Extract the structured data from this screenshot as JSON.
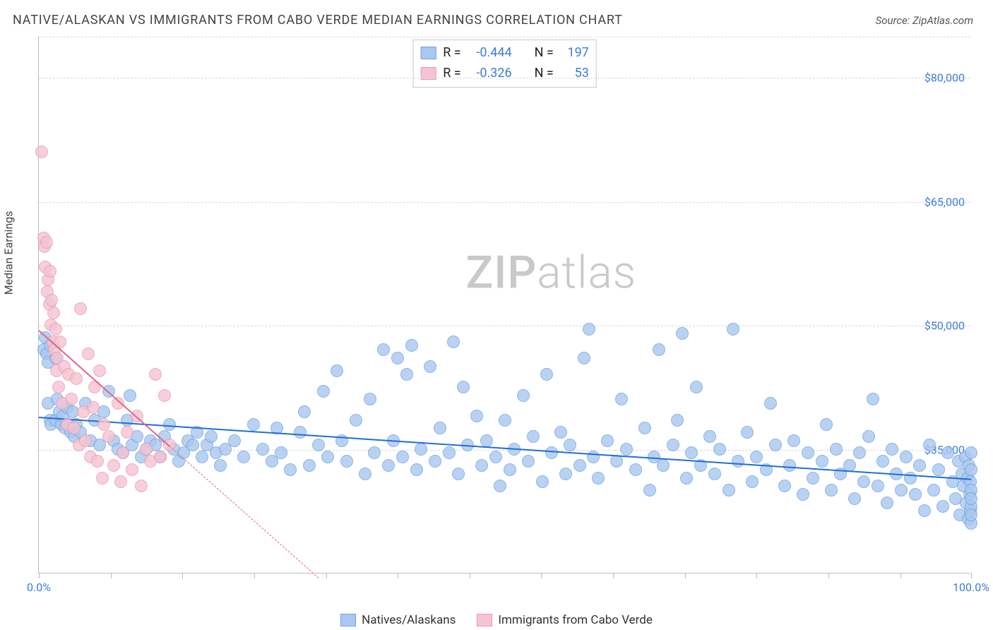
{
  "title": "NATIVE/ALASKAN VS IMMIGRANTS FROM CABO VERDE MEDIAN EARNINGS CORRELATION CHART",
  "source_label": "Source: ZipAtlas.com",
  "watermark": {
    "part1": "ZIP",
    "part2": "atlas"
  },
  "chart": {
    "type": "scatter",
    "y_axis_label": "Median Earnings",
    "xlim": [
      0,
      100
    ],
    "ylim": [
      20000,
      85000
    ],
    "background_color": "#ffffff",
    "grid_color": "#d8d8d8",
    "axis_color": "#bbbbbb",
    "x_ticks": [
      0,
      7.7,
      15.4,
      23.1,
      30.8,
      38.5,
      46.2,
      53.9,
      61.6,
      69.3,
      77.0,
      84.7,
      92.4,
      100
    ],
    "x_tick_labels": {
      "0": "0.0%",
      "100": "100.0%"
    },
    "y_ticks": [
      35000,
      50000,
      65000,
      80000
    ],
    "y_tick_labels": {
      "35000": "$35,000",
      "50000": "$50,000",
      "65000": "$65,000",
      "80000": "$80,000"
    },
    "tick_label_color": "#3b7dd8",
    "marker_radius": 9,
    "marker_border_width": 1.5,
    "marker_fill_opacity": 0.35,
    "series": [
      {
        "name": "Natives/Alaskans",
        "color_border": "#6fa3e0",
        "color_fill": "#a9c8ef",
        "trend_color": "#1f6fd4",
        "trend_line": {
          "x1": 0,
          "y1": 39000,
          "x2": 100,
          "y2": 31500
        },
        "stats": {
          "R": "-0.444",
          "N": "197"
        },
        "points": [
          [
            0.5,
            47000
          ],
          [
            0.7,
            48500
          ],
          [
            0.8,
            46500
          ],
          [
            1.0,
            45500
          ],
          [
            1.2,
            47500
          ],
          [
            1.0,
            40500
          ],
          [
            1.2,
            38500
          ],
          [
            1.3,
            38000
          ],
          [
            1.8,
            46000
          ],
          [
            1.8,
            38500
          ],
          [
            2.0,
            41000
          ],
          [
            2.2,
            39500
          ],
          [
            2.4,
            38000
          ],
          [
            2.6,
            39000
          ],
          [
            2.8,
            37500
          ],
          [
            3.0,
            40000
          ],
          [
            3.2,
            38000
          ],
          [
            3.4,
            37000
          ],
          [
            3.6,
            39500
          ],
          [
            3.8,
            36500
          ],
          [
            4.0,
            38000
          ],
          [
            4.5,
            37000
          ],
          [
            5.0,
            40500
          ],
          [
            5.5,
            36000
          ],
          [
            6.0,
            38500
          ],
          [
            6.5,
            35500
          ],
          [
            7.0,
            39500
          ],
          [
            7.5,
            42000
          ],
          [
            8.0,
            36000
          ],
          [
            8.5,
            35000
          ],
          [
            9.0,
            34500
          ],
          [
            9.5,
            38500
          ],
          [
            9.8,
            41500
          ],
          [
            10.0,
            35500
          ],
          [
            10.5,
            36500
          ],
          [
            11.0,
            34000
          ],
          [
            11.5,
            35000
          ],
          [
            12.0,
            36000
          ],
          [
            12.5,
            35500
          ],
          [
            13.0,
            34000
          ],
          [
            13.5,
            36500
          ],
          [
            14.0,
            38000
          ],
          [
            14.5,
            35000
          ],
          [
            15.0,
            33500
          ],
          [
            15.5,
            34500
          ],
          [
            16.0,
            36000
          ],
          [
            16.5,
            35500
          ],
          [
            17.0,
            37000
          ],
          [
            17.5,
            34000
          ],
          [
            18.0,
            35500
          ],
          [
            18.5,
            36500
          ],
          [
            19.0,
            34500
          ],
          [
            19.5,
            33000
          ],
          [
            20.0,
            35000
          ],
          [
            21.0,
            36000
          ],
          [
            22.0,
            34000
          ],
          [
            23.0,
            38000
          ],
          [
            24.0,
            35000
          ],
          [
            25.0,
            33500
          ],
          [
            25.5,
            37500
          ],
          [
            26.0,
            34500
          ],
          [
            27.0,
            32500
          ],
          [
            28.0,
            37000
          ],
          [
            28.5,
            39500
          ],
          [
            29.0,
            33000
          ],
          [
            30.0,
            35500
          ],
          [
            30.5,
            42000
          ],
          [
            31.0,
            34000
          ],
          [
            32.0,
            44500
          ],
          [
            32.5,
            36000
          ],
          [
            33.0,
            33500
          ],
          [
            34.0,
            38500
          ],
          [
            35.0,
            32000
          ],
          [
            35.5,
            41000
          ],
          [
            36.0,
            34500
          ],
          [
            37.0,
            47000
          ],
          [
            37.5,
            33000
          ],
          [
            38.0,
            36000
          ],
          [
            38.5,
            46000
          ],
          [
            39.0,
            34000
          ],
          [
            39.5,
            44000
          ],
          [
            40.0,
            47500
          ],
          [
            40.5,
            32500
          ],
          [
            41.0,
            35000
          ],
          [
            42.0,
            45000
          ],
          [
            42.5,
            33500
          ],
          [
            43.0,
            37500
          ],
          [
            44.0,
            34500
          ],
          [
            44.5,
            48000
          ],
          [
            45.0,
            32000
          ],
          [
            45.5,
            42500
          ],
          [
            46.0,
            35500
          ],
          [
            47.0,
            39000
          ],
          [
            47.5,
            33000
          ],
          [
            48.0,
            36000
          ],
          [
            49.0,
            34000
          ],
          [
            49.5,
            30500
          ],
          [
            50.0,
            38500
          ],
          [
            50.5,
            32500
          ],
          [
            51.0,
            35000
          ],
          [
            52.0,
            41500
          ],
          [
            52.5,
            33500
          ],
          [
            53.0,
            36500
          ],
          [
            54.0,
            31000
          ],
          [
            54.5,
            44000
          ],
          [
            55.0,
            34500
          ],
          [
            56.0,
            37000
          ],
          [
            56.5,
            32000
          ],
          [
            57.0,
            35500
          ],
          [
            58.0,
            33000
          ],
          [
            58.5,
            46000
          ],
          [
            59.0,
            49500
          ],
          [
            59.5,
            34000
          ],
          [
            60.0,
            31500
          ],
          [
            61.0,
            36000
          ],
          [
            62.0,
            33500
          ],
          [
            62.5,
            41000
          ],
          [
            63.0,
            35000
          ],
          [
            64.0,
            32500
          ],
          [
            65.0,
            37500
          ],
          [
            65.5,
            30000
          ],
          [
            66.0,
            34000
          ],
          [
            66.5,
            47000
          ],
          [
            67.0,
            33000
          ],
          [
            68.0,
            35500
          ],
          [
            68.5,
            38500
          ],
          [
            69.0,
            49000
          ],
          [
            69.5,
            31500
          ],
          [
            70.0,
            34500
          ],
          [
            70.5,
            42500
          ],
          [
            71.0,
            33000
          ],
          [
            72.0,
            36500
          ],
          [
            72.5,
            32000
          ],
          [
            73.0,
            35000
          ],
          [
            74.0,
            30000
          ],
          [
            74.5,
            49500
          ],
          [
            75.0,
            33500
          ],
          [
            76.0,
            37000
          ],
          [
            76.5,
            31000
          ],
          [
            77.0,
            34000
          ],
          [
            78.0,
            32500
          ],
          [
            78.5,
            40500
          ],
          [
            79.0,
            35500
          ],
          [
            80.0,
            30500
          ],
          [
            80.5,
            33000
          ],
          [
            81.0,
            36000
          ],
          [
            82.0,
            29500
          ],
          [
            82.5,
            34500
          ],
          [
            83.0,
            31500
          ],
          [
            84.0,
            33500
          ],
          [
            84.5,
            38000
          ],
          [
            85.0,
            30000
          ],
          [
            85.5,
            35000
          ],
          [
            86.0,
            32000
          ],
          [
            87.0,
            33000
          ],
          [
            87.5,
            29000
          ],
          [
            88.0,
            34500
          ],
          [
            88.5,
            31000
          ],
          [
            89.0,
            36500
          ],
          [
            89.5,
            41000
          ],
          [
            90.0,
            30500
          ],
          [
            90.5,
            33500
          ],
          [
            91.0,
            28500
          ],
          [
            91.5,
            35000
          ],
          [
            92.0,
            32000
          ],
          [
            92.5,
            30000
          ],
          [
            93.0,
            34000
          ],
          [
            93.5,
            31500
          ],
          [
            94.0,
            29500
          ],
          [
            94.5,
            33000
          ],
          [
            95.0,
            27500
          ],
          [
            95.5,
            35500
          ],
          [
            96.0,
            30000
          ],
          [
            96.5,
            32500
          ],
          [
            97.0,
            28000
          ],
          [
            97.5,
            34500
          ],
          [
            98.0,
            31000
          ],
          [
            98.3,
            29000
          ],
          [
            98.6,
            33500
          ],
          [
            98.8,
            27000
          ],
          [
            99.0,
            32000
          ],
          [
            99.2,
            30500
          ],
          [
            99.4,
            34000
          ],
          [
            99.5,
            28500
          ],
          [
            99.6,
            31500
          ],
          [
            99.7,
            26500
          ],
          [
            99.8,
            33000
          ],
          [
            99.85,
            29500
          ],
          [
            99.9,
            27500
          ],
          [
            99.95,
            31000
          ],
          [
            100.0,
            28000
          ],
          [
            100.0,
            30000
          ],
          [
            100.0,
            32500
          ],
          [
            100.0,
            26000
          ],
          [
            100.0,
            29000
          ],
          [
            100.0,
            34500
          ],
          [
            100.0,
            27000
          ]
        ]
      },
      {
        "name": "Immigrants from Cabo Verde",
        "color_border": "#e89ab0",
        "color_fill": "#f4c4d2",
        "trend_color": "#e06688",
        "trend_line": {
          "x1": 0,
          "y1": 49500,
          "x2": 14,
          "y2": 35500
        },
        "trend_dash": {
          "x1": 14,
          "y1": 35500,
          "x2": 30,
          "y2": 19500
        },
        "stats": {
          "R": "-0.326",
          "N": "53"
        },
        "points": [
          [
            0.3,
            71000
          ],
          [
            0.5,
            60500
          ],
          [
            0.6,
            59500
          ],
          [
            0.7,
            57000
          ],
          [
            0.8,
            60000
          ],
          [
            0.9,
            54000
          ],
          [
            1.0,
            55500
          ],
          [
            1.1,
            52500
          ],
          [
            1.2,
            56500
          ],
          [
            1.3,
            50000
          ],
          [
            1.4,
            53000
          ],
          [
            1.5,
            48000
          ],
          [
            1.6,
            51500
          ],
          [
            1.7,
            47000
          ],
          [
            1.8,
            49500
          ],
          [
            1.9,
            44500
          ],
          [
            2.0,
            46000
          ],
          [
            2.1,
            42500
          ],
          [
            2.3,
            48000
          ],
          [
            2.5,
            40500
          ],
          [
            2.7,
            45000
          ],
          [
            3.0,
            38000
          ],
          [
            3.2,
            44000
          ],
          [
            3.5,
            41000
          ],
          [
            3.8,
            37500
          ],
          [
            4.0,
            43500
          ],
          [
            4.3,
            35500
          ],
          [
            4.5,
            52000
          ],
          [
            4.8,
            39500
          ],
          [
            5.0,
            36000
          ],
          [
            5.3,
            46500
          ],
          [
            5.5,
            34000
          ],
          [
            5.8,
            40000
          ],
          [
            6.0,
            42500
          ],
          [
            6.3,
            33500
          ],
          [
            6.5,
            44500
          ],
          [
            6.8,
            31500
          ],
          [
            7.0,
            38000
          ],
          [
            7.5,
            36500
          ],
          [
            8.0,
            33000
          ],
          [
            8.5,
            40500
          ],
          [
            8.8,
            31000
          ],
          [
            9.0,
            34500
          ],
          [
            9.5,
            37000
          ],
          [
            10.0,
            32500
          ],
          [
            10.5,
            39000
          ],
          [
            11.0,
            30500
          ],
          [
            11.5,
            35000
          ],
          [
            12.0,
            33500
          ],
          [
            12.5,
            44000
          ],
          [
            13.0,
            34000
          ],
          [
            13.5,
            41500
          ],
          [
            14.0,
            35500
          ]
        ]
      }
    ],
    "stats_box_labels": {
      "R": "R =",
      "N": "N ="
    },
    "legend_labels": [
      "Natives/Alaskans",
      "Immigrants from Cabo Verde"
    ]
  }
}
